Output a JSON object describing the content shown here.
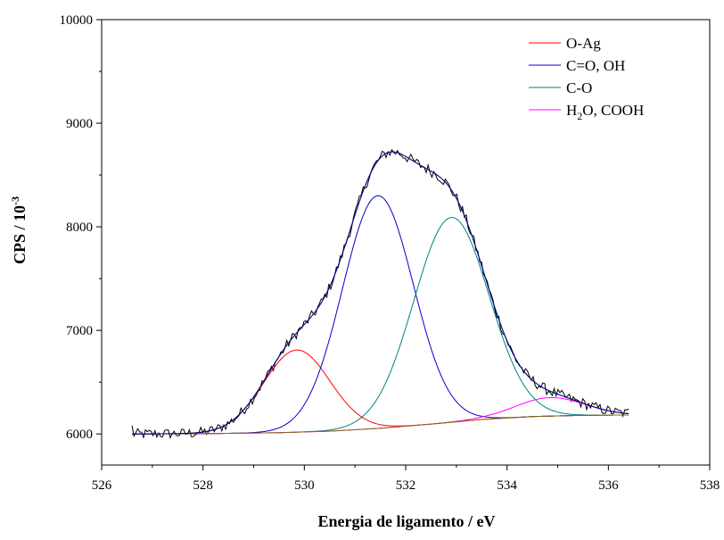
{
  "chart_data": {
    "type": "line",
    "xlabel": "Energia de ligamento / eV",
    "ylabel": "CPS / 10",
    "ylabel_sup": "-3",
    "xlim": [
      526,
      538
    ],
    "ylim": [
      5700,
      10000
    ],
    "x_ticks": [
      526,
      528,
      530,
      532,
      534,
      536,
      538
    ],
    "y_ticks": [
      6000,
      7000,
      8000,
      9000,
      10000
    ],
    "grid": false,
    "legend_position": "top-right",
    "x_range_data": [
      526.6,
      536.4
    ],
    "baseline": {
      "x": [
        526.6,
        528.0,
        529.5,
        530.5,
        531.5,
        532.5,
        533.5,
        534.5,
        535.5,
        536.4
      ],
      "y": [
        6000,
        6003,
        6012,
        6027,
        6055,
        6095,
        6140,
        6168,
        6180,
        6183
      ]
    },
    "series": [
      {
        "name": "O-Ag",
        "color": "#ff0000",
        "center": 529.85,
        "fwhm": 1.55,
        "peak_height": 6810
      },
      {
        "name": "C=O, OH",
        "color": "#0000cc",
        "center": 531.45,
        "fwhm": 1.65,
        "peak_height": 8300
      },
      {
        "name": "C-O",
        "color": "#008080",
        "center": 532.9,
        "fwhm": 1.75,
        "peak_height": 8090
      },
      {
        "name": "H",
        "name_sub": "2",
        "name_rest": "O, COOH",
        "color": "#ff00ff",
        "center": 534.85,
        "fwhm": 1.6,
        "peak_height": 6350
      }
    ],
    "envelope": {
      "color": "#000080",
      "peak_x": 532.0,
      "peak_y": 9120
    },
    "raw_data": {
      "color": "#000000",
      "noise_amplitude": 55,
      "start_y": 6080,
      "end_y": 6240
    },
    "frame_color": "#000000"
  }
}
